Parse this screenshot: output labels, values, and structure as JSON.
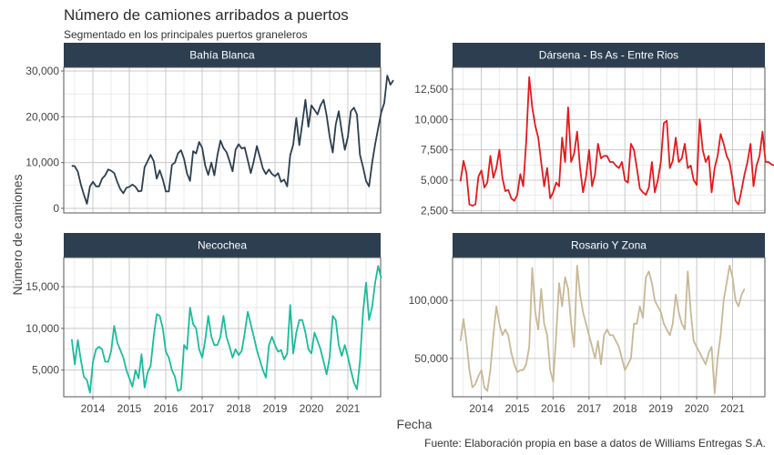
{
  "title": "Número de camiones arribados a puertos",
  "subtitle": "Segmentado en los principales puertos graneleros",
  "xlabel": "Fecha",
  "ylabel": "Número de camiones",
  "caption": "Fuente: Elaboración propia en base a datos de Williams Entregas S.A.",
  "chart_data": [
    {
      "type": "line",
      "title": "Bahía Blanca",
      "color": "#2c3e50",
      "yticks": [
        0,
        10000,
        20000,
        30000
      ],
      "ytick_labels": [
        "0",
        "10,000",
        "20,000",
        "30,000"
      ],
      "ylim": [
        -1000,
        30800
      ],
      "xticks": [],
      "xlim": [
        2013.2,
        2021.9
      ],
      "x_start": 2013.42,
      "x_step": 0.0833,
      "values": [
        9300,
        9200,
        8000,
        5200,
        3000,
        1000,
        4800,
        5800,
        4800,
        4800,
        6500,
        7200,
        8500,
        8200,
        7700,
        5800,
        4200,
        3300,
        4500,
        4700,
        5200,
        4700,
        3700,
        3800,
        9000,
        10300,
        11700,
        10300,
        6500,
        8300,
        6300,
        3700,
        3700,
        9500,
        10000,
        12000,
        12700,
        10800,
        7600,
        6000,
        12500,
        12000,
        14500,
        13200,
        9300,
        7300,
        10000,
        7200,
        11500,
        14800,
        13200,
        12300,
        10300,
        8100,
        12800,
        14000,
        13100,
        13300,
        10500,
        7700,
        10300,
        13600,
        11200,
        8700,
        7500,
        8500,
        7500,
        7000,
        7700,
        5800,
        6300,
        4800,
        11600,
        13900,
        19700,
        13800,
        18600,
        23700,
        17800,
        22500,
        21500,
        20500,
        22500,
        23700,
        20300,
        15700,
        12200,
        18300,
        21200,
        16800,
        12800,
        15600,
        21200,
        22000,
        20500,
        11700,
        9000,
        6000,
        4800,
        10000,
        14000,
        17500,
        21000,
        23000,
        29000,
        27000,
        28000
      ],
      "series": [
        {
          "name": "Bahía Blanca"
        }
      ]
    },
    {
      "type": "line",
      "title": "Dársena - Bs As - Entre Rios",
      "color": "#e31a1c",
      "yticks": [
        2500,
        5000,
        7500,
        10000,
        12500
      ],
      "ytick_labels": [
        "2,500",
        "5,000",
        "7,500",
        "10,000",
        "12,500"
      ],
      "ylim": [
        2300,
        14300
      ],
      "xticks": [],
      "xlim": [
        2013.2,
        2021.9
      ],
      "x_start": 2013.42,
      "x_step": 0.0833,
      "values": [
        4900,
        6600,
        5600,
        3000,
        2900,
        3000,
        5300,
        5800,
        4400,
        4800,
        7000,
        5200,
        6000,
        7500,
        5200,
        4100,
        4200,
        3500,
        3300,
        3800,
        5500,
        4500,
        8200,
        13500,
        11000,
        9500,
        8500,
        6500,
        4500,
        6000,
        3500,
        4000,
        4800,
        4500,
        8500,
        6500,
        11000,
        6500,
        7200,
        9000,
        6000,
        4000,
        5300,
        7500,
        4500,
        5500,
        8000,
        6800,
        7000,
        7000,
        6500,
        6500,
        6200,
        6000,
        6500,
        5000,
        4800,
        8000,
        7500,
        6000,
        4300,
        4000,
        3800,
        4400,
        6500,
        4000,
        5000,
        6500,
        9700,
        9900,
        6000,
        6600,
        8500,
        6500,
        6800,
        8000,
        6000,
        6200,
        5000,
        4600,
        10000,
        7500,
        6500,
        7000,
        4000,
        6000,
        7000,
        8800,
        8000,
        7000,
        6500,
        5000,
        3300,
        3000,
        4200,
        5500,
        6500,
        8000,
        4500,
        6200,
        7000,
        9000,
        6500,
        6500,
        6300,
        6200,
        6200
      ],
      "series": [
        {
          "name": "Dársena - Bs As - Entre Rios"
        }
      ]
    },
    {
      "type": "line",
      "title": "Necochea",
      "color": "#1abc9c",
      "yticks": [
        5000,
        10000,
        15000
      ],
      "ytick_labels": [
        "5,000",
        "10,000",
        "15,000"
      ],
      "ylim": [
        1800,
        18500
      ],
      "xticks": [
        2014,
        2015,
        2016,
        2017,
        2018,
        2019,
        2020,
        2021
      ],
      "xtick_labels": [
        "2014",
        "2015",
        "2016",
        "2017",
        "2018",
        "2019",
        "2020",
        "2021"
      ],
      "xlim": [
        2013.2,
        2021.9
      ],
      "x_start": 2013.42,
      "x_step": 0.0833,
      "values": [
        8700,
        5700,
        8600,
        6200,
        4200,
        3800,
        2300,
        6000,
        7500,
        7800,
        7500,
        6000,
        6000,
        7300,
        10300,
        8300,
        7400,
        6500,
        5000,
        4000,
        3000,
        5000,
        4000,
        6900,
        2900,
        4700,
        5500,
        9000,
        11700,
        11500,
        10000,
        7200,
        6500,
        5000,
        4200,
        2500,
        2700,
        8000,
        7500,
        12500,
        10500,
        10000,
        7500,
        6500,
        8600,
        11500,
        9000,
        8000,
        8000,
        9000,
        11500,
        9000,
        7800,
        6500,
        7500,
        6800,
        7300,
        9400,
        12000,
        10500,
        9000,
        7400,
        6200,
        5000,
        4100,
        8000,
        9000,
        8000,
        7200,
        7400,
        6300,
        7000,
        12800,
        7000,
        9500,
        11000,
        11000,
        9500,
        7500,
        7000,
        9500,
        8500,
        7500,
        6000,
        4500,
        6500,
        11500,
        11000,
        8000,
        6700,
        8000,
        6600,
        5000,
        3500,
        2700,
        6000,
        12000,
        15500,
        11000,
        12600,
        15500,
        17500,
        16000
      ],
      "series": [
        {
          "name": "Necochea"
        }
      ]
    },
    {
      "type": "line",
      "title": "Rosario Y Zona",
      "color": "#c8b896",
      "yticks": [
        50000,
        100000
      ],
      "ytick_labels": [
        "50,000",
        "100,000"
      ],
      "ylim": [
        17000,
        137000
      ],
      "xticks": [
        2014,
        2015,
        2016,
        2017,
        2018,
        2019,
        2020,
        2021
      ],
      "xtick_labels": [
        "2014",
        "2015",
        "2016",
        "2017",
        "2018",
        "2019",
        "2020",
        "2021"
      ],
      "xlim": [
        2013.2,
        2021.9
      ],
      "x_start": 2013.42,
      "x_step": 0.0833,
      "values": [
        65000,
        84000,
        65000,
        40000,
        25000,
        28000,
        35000,
        40000,
        25000,
        22000,
        40000,
        70000,
        95000,
        80000,
        70000,
        75000,
        70000,
        55000,
        45000,
        38000,
        40000,
        40000,
        45000,
        60000,
        128000,
        90000,
        75000,
        110000,
        80000,
        70000,
        40000,
        30000,
        70000,
        115000,
        95000,
        120000,
        110000,
        80000,
        60000,
        130000,
        105000,
        90000,
        80000,
        70000,
        60000,
        50000,
        65000,
        45000,
        70000,
        75000,
        70000,
        70000,
        65000,
        60000,
        50000,
        40000,
        45000,
        50000,
        80000,
        80000,
        95000,
        85000,
        120000,
        125000,
        115000,
        100000,
        95000,
        90000,
        80000,
        75000,
        70000,
        80000,
        105000,
        90000,
        80000,
        75000,
        125000,
        90000,
        65000,
        60000,
        55000,
        50000,
        45000,
        55000,
        60000,
        20000,
        50000,
        70000,
        100000,
        115000,
        130000,
        120000,
        100000,
        95000,
        105000,
        110000
      ],
      "series": [
        {
          "name": "Rosario Y Zona"
        }
      ]
    }
  ]
}
